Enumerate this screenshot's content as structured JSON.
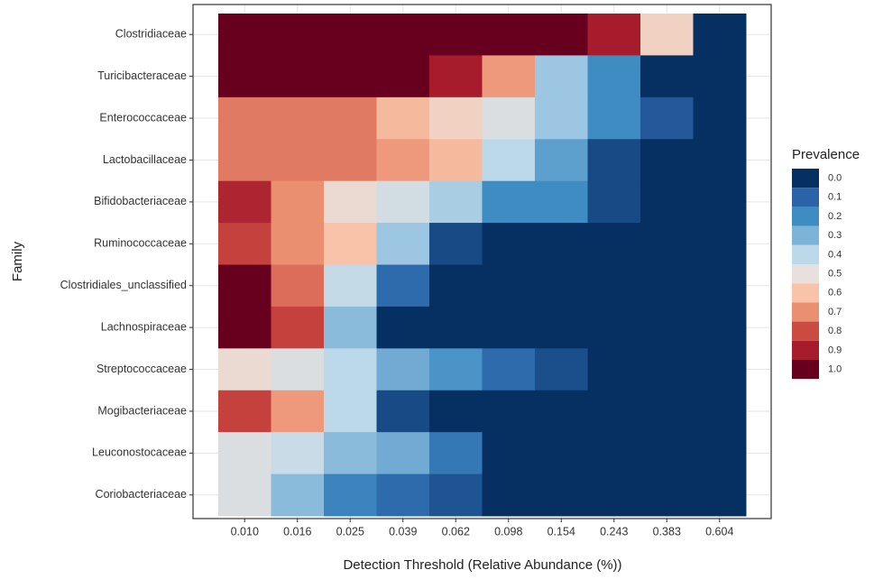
{
  "chart_data": {
    "type": "heatmap",
    "x_label": "Detection Threshold (Relative Abundance (%))",
    "y_label": "Family",
    "categories": [
      "0.010",
      "0.016",
      "0.025",
      "0.039",
      "0.062",
      "0.098",
      "0.154",
      "0.243",
      "0.383",
      "0.604"
    ],
    "rows": [
      "Clostridiaceae",
      "Turicibacteraceae",
      "Enterococcaceae",
      "Lactobacillaceae",
      "Bifidobacteriaceae",
      "Ruminococcaceae",
      "Clostridiales_unclassified",
      "Lachnospiraceae",
      "Streptococcaceae",
      "Mogibacteriaceae",
      "Leuconostocaceae",
      "Coriobacteriaceae"
    ],
    "values": [
      [
        1,
        1,
        1,
        1,
        1,
        1,
        1,
        0.9,
        0.55,
        0
      ],
      [
        1,
        1,
        1,
        1,
        0.9,
        0.68,
        0.35,
        0.2,
        0,
        0
      ],
      [
        0.73,
        0.73,
        0.73,
        0.62,
        0.55,
        0.47,
        0.35,
        0.2,
        0.08,
        0
      ],
      [
        0.73,
        0.73,
        0.73,
        0.68,
        0.62,
        0.4,
        0.25,
        0.05,
        0,
        0
      ],
      [
        0.88,
        0.7,
        0.52,
        0.45,
        0.37,
        0.2,
        0.2,
        0.05,
        0,
        0
      ],
      [
        0.82,
        0.7,
        0.6,
        0.35,
        0.05,
        0,
        0,
        0,
        0,
        0
      ],
      [
        1,
        0.75,
        0.42,
        0.12,
        0,
        0,
        0,
        0,
        0,
        0
      ],
      [
        1,
        0.82,
        0.32,
        0,
        0,
        0,
        0,
        0,
        0,
        0
      ],
      [
        0.52,
        0.47,
        0.4,
        0.28,
        0.22,
        0.12,
        0.06,
        0,
        0,
        0
      ],
      [
        0.82,
        0.68,
        0.4,
        0.05,
        0,
        0,
        0,
        0,
        0,
        0
      ],
      [
        0.47,
        0.43,
        0.32,
        0.28,
        0.15,
        0,
        0,
        0,
        0,
        0
      ],
      [
        0.47,
        0.32,
        0.18,
        0.12,
        0.07,
        0,
        0,
        0,
        0,
        0
      ]
    ],
    "legend": {
      "title": "Prevalence",
      "ticks": [
        {
          "value": 0,
          "label": "0.0"
        },
        {
          "value": 0.1,
          "label": "0.1"
        },
        {
          "value": 0.2,
          "label": "0.2"
        },
        {
          "value": 0.3,
          "label": "0.3"
        },
        {
          "value": 0.4,
          "label": "0.4"
        },
        {
          "value": 0.5,
          "label": "0.5"
        },
        {
          "value": 0.6,
          "label": "0.6"
        },
        {
          "value": 0.7,
          "label": "0.7"
        },
        {
          "value": 0.8,
          "label": "0.8"
        },
        {
          "value": 0.9,
          "label": "0.9"
        },
        {
          "value": 1,
          "label": "1.0"
        }
      ],
      "colors": [
        "#053061",
        "#2a63a8",
        "#3f8cc3",
        "#7db3d7",
        "#bcd9ea",
        "#e8e0dc",
        "#f8c3a8",
        "#eb8f71",
        "#cb4a42",
        "#a61c2d",
        "#67001f"
      ]
    },
    "grid": true
  }
}
